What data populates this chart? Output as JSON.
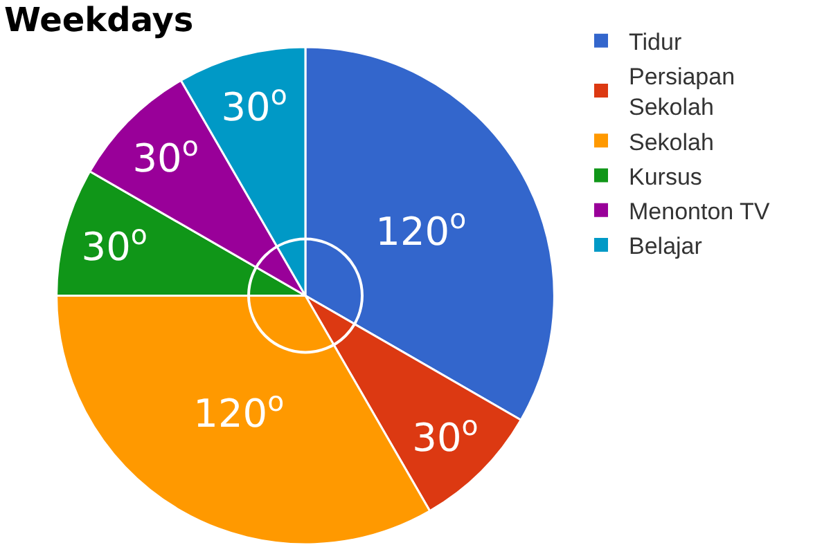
{
  "chart_data": {
    "type": "pie",
    "title": "Weekdays",
    "categories": [
      "Tidur",
      "Persiapan Sekolah",
      "Sekolah",
      "Kursus",
      "Menonton TV",
      "Belajar"
    ],
    "values": [
      120,
      30,
      120,
      30,
      30,
      30
    ],
    "value_labels": [
      "120$^{o}$",
      "30$^{o}$",
      "120$^{o}$",
      "30$^{o}$",
      "30$^{o}$",
      "30$^{o}$"
    ],
    "colors": [
      "#3366cc",
      "#dc3912",
      "#ff9900",
      "#109618",
      "#990099",
      "#0099c6"
    ],
    "legend": "top right"
  }
}
